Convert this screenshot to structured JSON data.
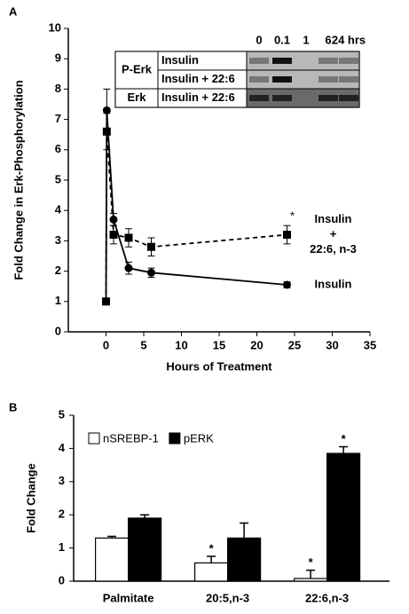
{
  "chart_data": [
    {
      "type": "line",
      "panel": "A",
      "y_label": "Fold Change in Erk-Phosphorylation",
      "x_label": "Hours of Treatment",
      "x": [
        0,
        0.1,
        1,
        3,
        6,
        24
      ],
      "series": [
        {
          "label": [
            "Insulin"
          ],
          "color": "#000000",
          "marker": "circle",
          "line_style": "solid",
          "values": [
            1,
            7.3,
            3.7,
            2.1,
            1.95,
            1.55
          ],
          "errors": [
            0,
            0.7,
            0.2,
            0.2,
            0.15,
            0.1
          ],
          "significant": [
            false,
            false,
            false,
            false,
            false,
            false
          ]
        },
        {
          "label": [
            "Insulin",
            "+",
            "22:6, n-3"
          ],
          "color": "#000000",
          "marker": "square",
          "line_style": "dashed",
          "values": [
            1,
            6.6,
            3.2,
            3.1,
            2.8,
            3.2
          ],
          "errors": [
            0,
            0.6,
            0.3,
            0.3,
            0.3,
            0.3
          ],
          "significant": [
            false,
            false,
            false,
            false,
            false,
            true
          ]
        }
      ],
      "significance_mark": "*",
      "xlim": [
        -5,
        35
      ],
      "xticks": [
        0,
        5,
        10,
        15,
        20,
        25,
        30,
        35
      ],
      "ylim": [
        0,
        10
      ],
      "yticks": [
        0,
        1,
        2,
        3,
        4,
        5,
        6,
        7,
        8,
        9,
        10
      ],
      "inset": {
        "columns": [
          "0",
          "0.1",
          "1",
          "6",
          "24 hrs"
        ],
        "groups": [
          {
            "name": "P-Erk",
            "rows": [
              "Insulin",
              "Insulin + 22:6"
            ]
          },
          {
            "name": "Erk",
            "rows": [
              "Insulin + 22:6"
            ]
          }
        ]
      }
    },
    {
      "type": "bar",
      "panel": "B",
      "y_label": "Fold Change",
      "categories": [
        "Palmitate",
        "20:5,n-3",
        "22:6,n-3"
      ],
      "series": [
        {
          "name": "nSREBP-1",
          "color": "#ffffff",
          "values": [
            1.3,
            0.55,
            0.08
          ],
          "errors": [
            0.05,
            0.2,
            0.25
          ],
          "significant": [
            false,
            true,
            true
          ]
        },
        {
          "name": "pERK",
          "color": "#000000",
          "values": [
            1.9,
            1.3,
            3.85
          ],
          "errors": [
            0.1,
            0.45,
            0.2
          ],
          "significant": [
            false,
            false,
            true
          ]
        }
      ],
      "significance_mark": "*",
      "ylim": [
        0,
        5
      ],
      "yticks": [
        0,
        1,
        2,
        3,
        4,
        5
      ]
    }
  ]
}
